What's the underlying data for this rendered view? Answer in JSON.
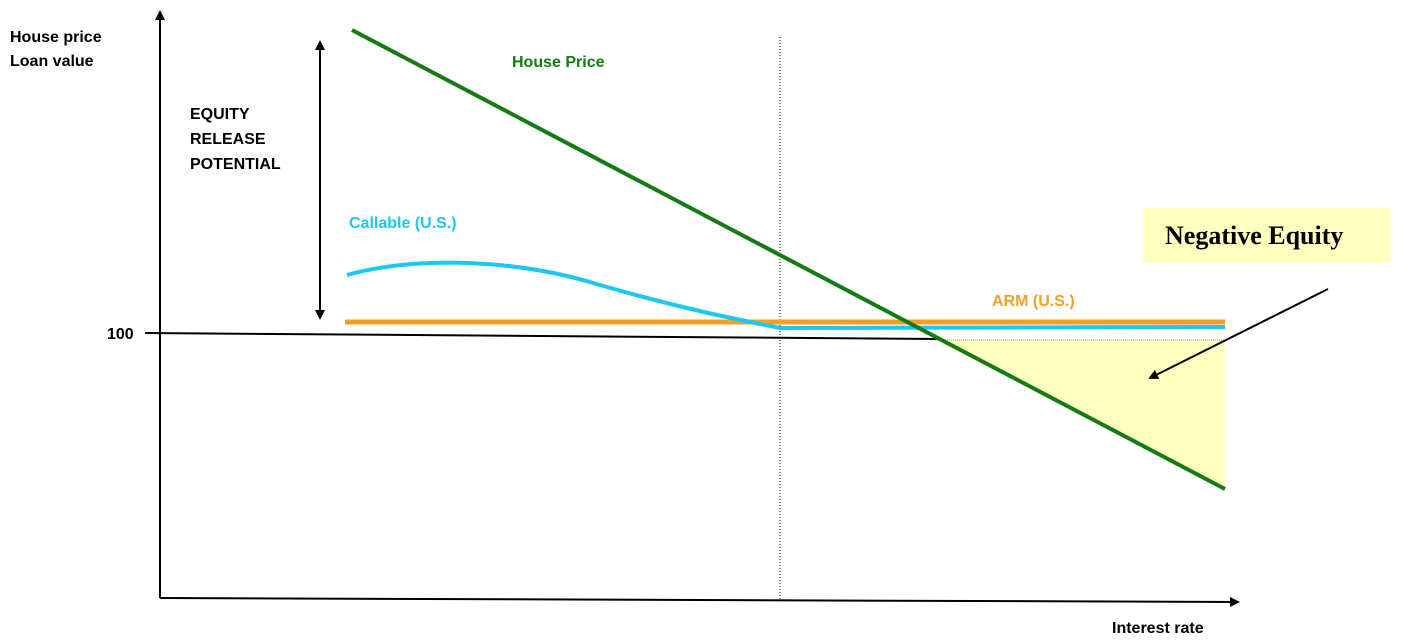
{
  "axes": {
    "y_label_line1": "House price",
    "y_label_line2": "Loan value",
    "x_label": "Interest rate",
    "reference_tick": "100"
  },
  "labels": {
    "equity_release_line1": "EQUITY",
    "equity_release_line2": "RELEASE",
    "equity_release_line3": "POTENTIAL",
    "house_price": "House Price",
    "callable": "Callable (U.S.)",
    "arm": "ARM (U.S.)",
    "negative_equity": "Negative Equity"
  },
  "colors": {
    "house_price": "#147a14",
    "callable": "#1ac8f0",
    "arm": "#f0a028",
    "negative_equity_fill": "#ffffc0",
    "axis": "#000000"
  }
}
